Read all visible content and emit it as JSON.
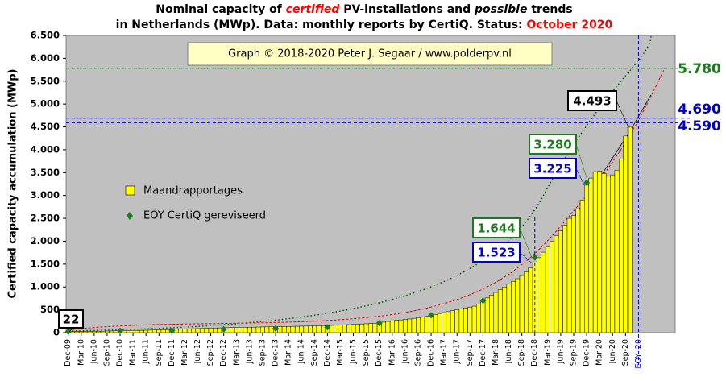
{
  "chart_data": {
    "type": "bar",
    "title": {
      "line1": [
        "Nominal capacity of",
        "certified",
        "PV-installations and",
        "possible",
        "trends"
      ],
      "line2": [
        "in Netherlands (MWp). Data: monthly  reports by CertiQ. Status:",
        "October 2020"
      ]
    },
    "credit": "Graph © 2018-2020 Peter J. Segaar / www.polderpv.nl",
    "y_label": "Certified capacity accumulation (MWp)",
    "ylim": [
      0,
      6500
    ],
    "yticks": [
      0,
      500,
      {
        "value": 1000,
        "label": "1.000"
      },
      {
        "value": 1500,
        "label": "1.500"
      },
      {
        "value": 2000,
        "label": "2.000"
      },
      {
        "value": 2500,
        "label": "2.500"
      },
      {
        "value": 3000,
        "label": "3.000"
      },
      {
        "value": 3500,
        "label": "3.500"
      },
      {
        "value": 4000,
        "label": "4.000"
      },
      {
        "value": 4500,
        "label": "4.500"
      },
      {
        "value": 5000,
        "label": "5.000"
      },
      {
        "value": 5500,
        "label": "5.500"
      },
      {
        "value": 6000,
        "label": "6.000"
      },
      {
        "value": 6500,
        "label": "6.500"
      }
    ],
    "categories": [
      "Dec-09",
      null,
      null,
      "Mar-10",
      null,
      null,
      "Jun-10",
      null,
      null,
      "Sep-10",
      null,
      null,
      "Dec-10",
      null,
      null,
      "Mar-11",
      null,
      null,
      "Jun-11",
      null,
      null,
      "Sep-11",
      null,
      null,
      "Dec-11",
      null,
      null,
      "Mar-12",
      null,
      null,
      "Jun-12",
      null,
      null,
      "Sep-12",
      null,
      null,
      "Dec-12",
      null,
      null,
      "Mar-13",
      null,
      null,
      "Jun-13",
      null,
      null,
      "Sep-13",
      null,
      null,
      "Dec-13",
      null,
      null,
      "Mar-14",
      null,
      null,
      "Jun-14",
      null,
      null,
      "Sep-14",
      null,
      null,
      "Dec-14",
      null,
      null,
      "Mar-15",
      null,
      null,
      "Jun-15",
      null,
      null,
      "Sep-15",
      null,
      null,
      "Dec-15",
      null,
      null,
      "Mar-16",
      null,
      null,
      "Jun-16",
      null,
      null,
      "Sep-16",
      null,
      null,
      "Dec-16",
      null,
      null,
      "Mar-17",
      null,
      null,
      "Jun-17",
      null,
      null,
      "Sep-17",
      null,
      null,
      "Dec-17",
      null,
      null,
      "Mar-18",
      null,
      null,
      "Jun-18",
      null,
      null,
      "Sep-18",
      null,
      null,
      "Dec-18",
      null,
      null,
      "Mar-19",
      null,
      null,
      "Jun-19",
      null,
      null,
      "Sep-19",
      null,
      null,
      "Dec-19",
      null,
      null,
      "Mar-20",
      null,
      null,
      "Jun-20",
      null,
      null,
      "Sep-20",
      null
    ],
    "eoy_label": "EOY '20",
    "series": [
      {
        "name": "Maandrapportages",
        "color": "#ffff00",
        "values": [
          22,
          23,
          24,
          25,
          26,
          27,
          28,
          30,
          32,
          34,
          36,
          38,
          40,
          42,
          44,
          46,
          48,
          50,
          52,
          55,
          58,
          61,
          64,
          67,
          70,
          73,
          76,
          79,
          82,
          85,
          88,
          91,
          94,
          97,
          100,
          103,
          106,
          108,
          110,
          112,
          114,
          116,
          118,
          120,
          122,
          124,
          126,
          128,
          130,
          132,
          134,
          136,
          138,
          140,
          142,
          144,
          146,
          148,
          150,
          152,
          155,
          158,
          162,
          166,
          170,
          175,
          180,
          185,
          190,
          195,
          200,
          205,
          215,
          230,
          245,
          260,
          270,
          280,
          290,
          300,
          315,
          330,
          345,
          360,
          380,
          400,
          420,
          440,
          460,
          480,
          500,
          520,
          540,
          560,
          580,
          630,
          700,
          760,
          820,
          880,
          940,
          1000,
          1060,
          1120,
          1180,
          1250,
          1330,
          1420,
          1523,
          1640,
          1760,
          1880,
          2000,
          2120,
          2230,
          2350,
          2500,
          2560,
          2700,
          2900,
          3225,
          3380,
          3520,
          3530,
          3480,
          3420,
          3450,
          3550,
          3800,
          4300,
          4493
        ]
      },
      {
        "name": "EOY CertiQ gereviseerd",
        "color": "#1f7a1f",
        "x": [
          "Dec-09",
          "Dec-10",
          "Dec-11",
          "Dec-12",
          "Dec-13",
          "Dec-14",
          "Dec-15",
          "Dec-16",
          "Dec-17",
          "Dec-18",
          "Dec-19"
        ],
        "values": [
          22,
          40,
          50,
          75,
          90,
          120,
          210,
          380,
          700,
          1644,
          3280
        ]
      }
    ],
    "annotations": [
      {
        "label": "22",
        "value": 22,
        "color": "#000000"
      },
      {
        "label": "1.644",
        "value": 1644,
        "color": "#1f7a1f"
      },
      {
        "label": "1.523",
        "value": 1523,
        "color": "#0000cc"
      },
      {
        "label": "3.280",
        "value": 3280,
        "color": "#1f7a1f"
      },
      {
        "label": "3.225",
        "value": 3225,
        "color": "#0000cc"
      },
      {
        "label": "4.493",
        "value": 4493,
        "color": "#000000"
      }
    ],
    "reference_lines": [
      {
        "value": 5780,
        "label": "5.780",
        "color": "#1f7a1f"
      },
      {
        "value": 4690,
        "label": "4.690",
        "color": "#0000cc"
      },
      {
        "value": 4590,
        "label": "4.590",
        "color": "#0000cc"
      }
    ]
  }
}
